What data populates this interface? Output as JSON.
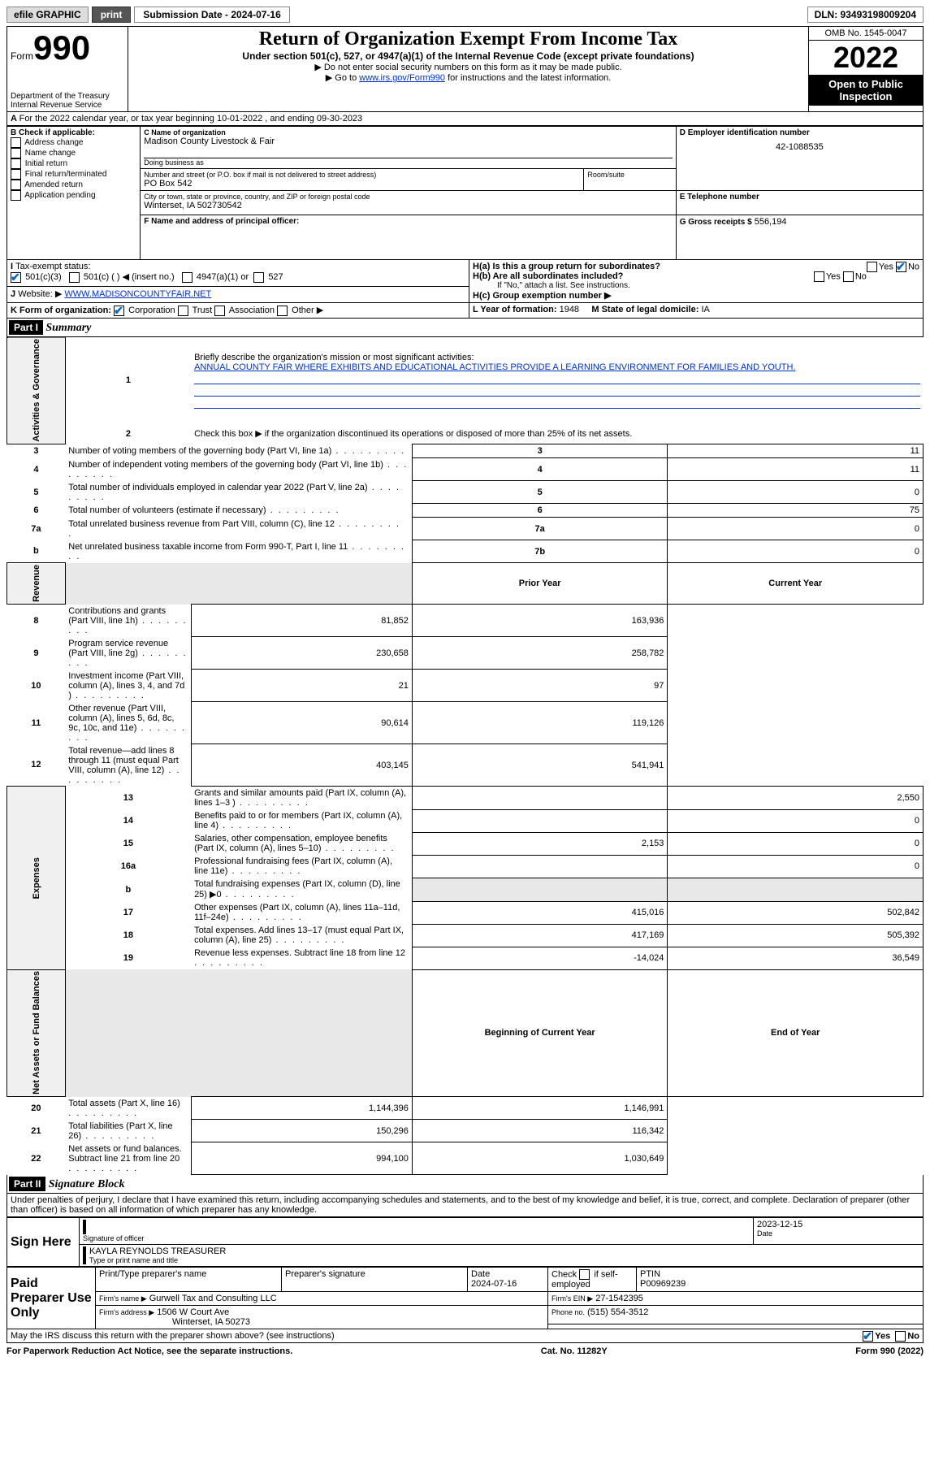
{
  "topbar": {
    "efile": "efile GRAPHIC",
    "print": "print",
    "sub_label": "Submission Date - 2024-07-16",
    "dln": "DLN: 93493198009204"
  },
  "header": {
    "form_prefix": "Form",
    "form_number": "990",
    "dept": "Department of the Treasury",
    "irs": "Internal Revenue Service",
    "title": "Return of Organization Exempt From Income Tax",
    "sub1": "Under section 501(c), 527, or 4947(a)(1) of the Internal Revenue Code (except private foundations)",
    "sub2": "▶ Do not enter social security numbers on this form as it may be made public.",
    "sub3_pre": "▶ Go to ",
    "sub3_link": "www.irs.gov/Form990",
    "sub3_post": " for instructions and the latest information.",
    "omb": "OMB No. 1545-0047",
    "year": "2022",
    "open": "Open to Public Inspection"
  },
  "periodA": "For the 2022 calendar year, or tax year beginning 10-01-2022   , and ending 09-30-2023",
  "boxB": {
    "label": "B Check if applicable:",
    "opts": [
      "Address change",
      "Name change",
      "Initial return",
      "Final return/terminated",
      "Amended return",
      "Application pending"
    ]
  },
  "boxC": {
    "label": "C Name of organization",
    "name": "Madison County Livestock & Fair",
    "dba_label": "Doing business as",
    "addr_label": "Number and street (or P.O. box if mail is not delivered to street address)",
    "room_label": "Room/suite",
    "addr": "PO Box 542",
    "city_label": "City or town, state or province, country, and ZIP or foreign postal code",
    "city": "Winterset, IA  502730542"
  },
  "boxD": {
    "label": "D Employer identification number",
    "val": "42-1088535"
  },
  "boxE": {
    "label": "E Telephone number"
  },
  "boxG": {
    "label": "G Gross receipts $",
    "val": "556,194"
  },
  "boxF": {
    "label": "F Name and address of principal officer:"
  },
  "boxH": {
    "ha": "H(a)  Is this a group return for subordinates?",
    "hb": "H(b)  Are all subordinates included?",
    "hb_note": "If \"No,\" attach a list. See instructions.",
    "hc": "H(c)  Group exemption number ▶",
    "yes": "Yes",
    "no": "No"
  },
  "boxI": {
    "label": "Tax-exempt status:",
    "o1": "501(c)(3)",
    "o2": "501(c) (  ) ◀ (insert no.)",
    "o3": "4947(a)(1) or",
    "o4": "527"
  },
  "boxJ": {
    "label": "Website: ▶",
    "val": "WWW.MADISONCOUNTYFAIR.NET"
  },
  "boxK": {
    "label": "K Form of organization:",
    "o1": "Corporation",
    "o2": "Trust",
    "o3": "Association",
    "o4": "Other ▶"
  },
  "boxL": {
    "label": "L Year of formation:",
    "val": "1948"
  },
  "boxM": {
    "label": "M State of legal domicile:",
    "val": "IA"
  },
  "part1": {
    "hdr": "Part I",
    "title": "Summary"
  },
  "mission_label": "Briefly describe the organization's mission or most significant activities:",
  "mission": "ANNUAL COUNTY FAIR WHERE EXHIBITS AND EDUCATIONAL ACTIVITIES PROVIDE A LEARNING ENVIRONMENT FOR FAMILIES AND YOUTH.",
  "line2": "Check this box ▶        if the organization discontinued its operations or disposed of more than 25% of its net assets.",
  "sections": {
    "gov": "Activities & Governance",
    "rev": "Revenue",
    "exp": "Expenses",
    "net": "Net Assets or Fund Balances"
  },
  "gov_lines": [
    {
      "n": "3",
      "t": "Number of voting members of the governing body (Part VI, line 1a)",
      "box": "3",
      "v": "11"
    },
    {
      "n": "4",
      "t": "Number of independent voting members of the governing body (Part VI, line 1b)",
      "box": "4",
      "v": "11"
    },
    {
      "n": "5",
      "t": "Total number of individuals employed in calendar year 2022 (Part V, line 2a)",
      "box": "5",
      "v": "0"
    },
    {
      "n": "6",
      "t": "Total number of volunteers (estimate if necessary)",
      "box": "6",
      "v": "75"
    },
    {
      "n": "7a",
      "t": "Total unrelated business revenue from Part VIII, column (C), line 12",
      "box": "7a",
      "v": "0"
    },
    {
      "n": "b",
      "t": "Net unrelated business taxable income from Form 990-T, Part I, line 11",
      "box": "7b",
      "v": "0"
    }
  ],
  "col_prior": "Prior Year",
  "col_current": "Current Year",
  "col_begin": "Beginning of Current Year",
  "col_end": "End of Year",
  "rev_lines": [
    {
      "n": "8",
      "t": "Contributions and grants (Part VIII, line 1h)",
      "p": "81,852",
      "c": "163,936"
    },
    {
      "n": "9",
      "t": "Program service revenue (Part VIII, line 2g)",
      "p": "230,658",
      "c": "258,782"
    },
    {
      "n": "10",
      "t": "Investment income (Part VIII, column (A), lines 3, 4, and 7d )",
      "p": "21",
      "c": "97"
    },
    {
      "n": "11",
      "t": "Other revenue (Part VIII, column (A), lines 5, 6d, 8c, 9c, 10c, and 11e)",
      "p": "90,614",
      "c": "119,126"
    },
    {
      "n": "12",
      "t": "Total revenue—add lines 8 through 11 (must equal Part VIII, column (A), line 12)",
      "p": "403,145",
      "c": "541,941"
    }
  ],
  "exp_lines": [
    {
      "n": "13",
      "t": "Grants and similar amounts paid (Part IX, column (A), lines 1–3 )",
      "p": "",
      "c": "2,550"
    },
    {
      "n": "14",
      "t": "Benefits paid to or for members (Part IX, column (A), line 4)",
      "p": "",
      "c": "0"
    },
    {
      "n": "15",
      "t": "Salaries, other compensation, employee benefits (Part IX, column (A), lines 5–10)",
      "p": "2,153",
      "c": "0"
    },
    {
      "n": "16a",
      "t": "Professional fundraising fees (Part IX, column (A), line 11e)",
      "p": "",
      "c": "0"
    },
    {
      "n": "b",
      "t": "Total fundraising expenses (Part IX, column (D), line 25) ▶0",
      "p": "GRAY",
      "c": "GRAY"
    },
    {
      "n": "17",
      "t": "Other expenses (Part IX, column (A), lines 11a–11d, 11f–24e)",
      "p": "415,016",
      "c": "502,842"
    },
    {
      "n": "18",
      "t": "Total expenses. Add lines 13–17 (must equal Part IX, column (A), line 25)",
      "p": "417,169",
      "c": "505,392"
    },
    {
      "n": "19",
      "t": "Revenue less expenses. Subtract line 18 from line 12",
      "p": "-14,024",
      "c": "36,549"
    }
  ],
  "net_lines": [
    {
      "n": "20",
      "t": "Total assets (Part X, line 16)",
      "p": "1,144,396",
      "c": "1,146,991"
    },
    {
      "n": "21",
      "t": "Total liabilities (Part X, line 26)",
      "p": "150,296",
      "c": "116,342"
    },
    {
      "n": "22",
      "t": "Net assets or fund balances. Subtract line 21 from line 20",
      "p": "994,100",
      "c": "1,030,649"
    }
  ],
  "part2": {
    "hdr": "Part II",
    "title": "Signature Block"
  },
  "penalty": "Under penalties of perjury, I declare that I have examined this return, including accompanying schedules and statements, and to the best of my knowledge and belief, it is true, correct, and complete. Declaration of preparer (other than officer) is based on all information of which preparer has any knowledge.",
  "sign": {
    "here": "Sign Here",
    "sig_label": "Signature of officer",
    "date_label": "Date",
    "date": "2023-12-15",
    "name": "KAYLA REYNOLDS  TREASURER",
    "name_label": "Type or print name and title"
  },
  "paid": {
    "label": "Paid Preparer Use Only",
    "h1": "Print/Type preparer's name",
    "h2": "Preparer's signature",
    "h3": "Date",
    "date": "2024-07-16",
    "h4_pre": "Check",
    "h4_post": "if self-employed",
    "h5": "PTIN",
    "ptin": "P00969239",
    "firm_name_l": "Firm's name    ▶",
    "firm_name": "Gurwell Tax and Consulting LLC",
    "firm_ein_l": "Firm's EIN ▶",
    "firm_ein": "27-1542395",
    "firm_addr_l": "Firm's address ▶",
    "firm_addr1": "1506 W Court Ave",
    "firm_addr2": "Winterset, IA  50273",
    "phone_l": "Phone no.",
    "phone": "(515) 554-3512"
  },
  "discuss": "May the IRS discuss this return with the preparer shown above? (see instructions)",
  "footer": {
    "left": "For Paperwork Reduction Act Notice, see the separate instructions.",
    "mid": "Cat. No. 11282Y",
    "right": "Form 990 (2022)"
  }
}
